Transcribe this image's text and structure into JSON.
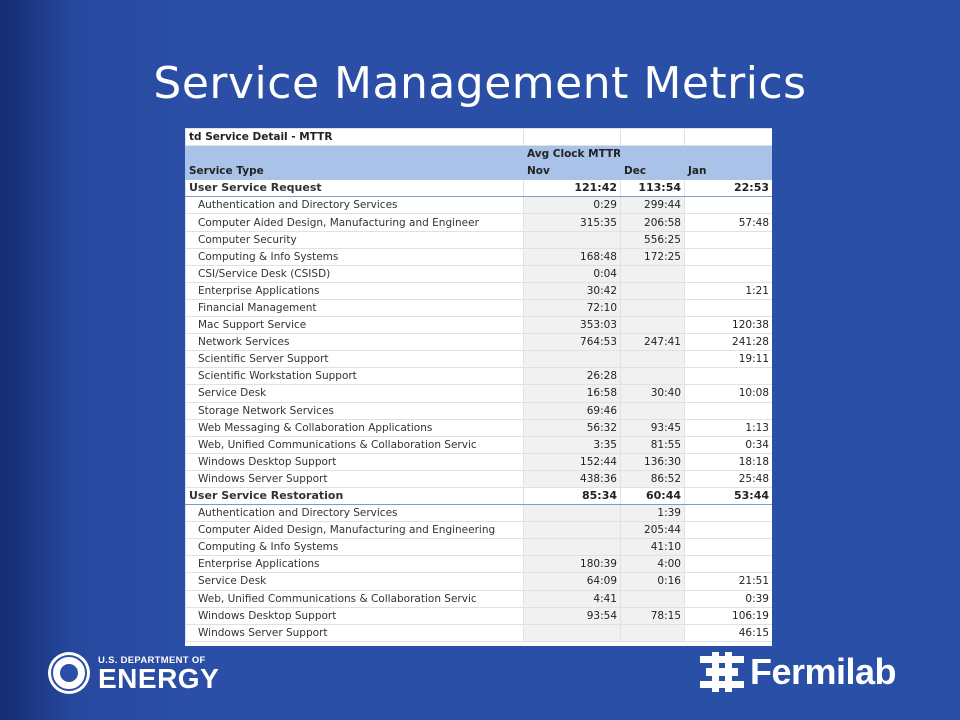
{
  "slide": {
    "title": "Service Management Metrics"
  },
  "table": {
    "top_title": "td Service Detail - MTTR",
    "header_metric": "Avg Clock MTTR",
    "col_service": "Service Type",
    "months": [
      "Nov",
      "Dec",
      "Jan"
    ],
    "groups": [
      {
        "name": "User Service Request",
        "totals": [
          "121:42",
          "113:54",
          "22:53"
        ],
        "rows": [
          {
            "name": "Authentication and Directory Services",
            "vals": [
              "0:29",
              "299:44",
              ""
            ]
          },
          {
            "name": "Computer Aided Design, Manufacturing and Engineer",
            "vals": [
              "315:35",
              "206:58",
              "57:48"
            ]
          },
          {
            "name": "Computer Security",
            "vals": [
              "",
              "556:25",
              ""
            ]
          },
          {
            "name": "Computing & Info Systems",
            "vals": [
              "168:48",
              "172:25",
              ""
            ]
          },
          {
            "name": "CSI/Service Desk (CSISD)",
            "vals": [
              "0:04",
              "",
              ""
            ]
          },
          {
            "name": "Enterprise Applications",
            "vals": [
              "30:42",
              "",
              "1:21"
            ]
          },
          {
            "name": "Financial Management",
            "vals": [
              "72:10",
              "",
              ""
            ]
          },
          {
            "name": "Mac Support Service",
            "vals": [
              "353:03",
              "",
              "120:38"
            ]
          },
          {
            "name": "Network Services",
            "vals": [
              "764:53",
              "247:41",
              "241:28"
            ]
          },
          {
            "name": "Scientific Server Support",
            "vals": [
              "",
              "",
              "19:11"
            ]
          },
          {
            "name": "Scientific Workstation Support",
            "vals": [
              "26:28",
              "",
              ""
            ]
          },
          {
            "name": "Service Desk",
            "vals": [
              "16:58",
              "30:40",
              "10:08"
            ]
          },
          {
            "name": "Storage Network Services",
            "vals": [
              "69:46",
              "",
              ""
            ]
          },
          {
            "name": "Web Messaging & Collaboration Applications",
            "vals": [
              "56:32",
              "93:45",
              "1:13"
            ]
          },
          {
            "name": "Web, Unified Communications & Collaboration Servic",
            "vals": [
              "3:35",
              "81:55",
              "0:34"
            ]
          },
          {
            "name": "Windows Desktop Support",
            "vals": [
              "152:44",
              "136:30",
              "18:18"
            ]
          },
          {
            "name": "Windows Server Support",
            "vals": [
              "438:36",
              "86:52",
              "25:48"
            ]
          }
        ]
      },
      {
        "name": "User Service Restoration",
        "totals": [
          "85:34",
          "60:44",
          "53:44"
        ],
        "rows": [
          {
            "name": "Authentication and Directory Services",
            "vals": [
              "",
              "1:39",
              ""
            ]
          },
          {
            "name": "Computer Aided Design, Manufacturing and Engineering",
            "vals": [
              "",
              "205:44",
              ""
            ]
          },
          {
            "name": "Computing & Info Systems",
            "vals": [
              "",
              "41:10",
              ""
            ]
          },
          {
            "name": "Enterprise Applications",
            "vals": [
              "180:39",
              "4:00",
              ""
            ]
          },
          {
            "name": "Service Desk",
            "vals": [
              "64:09",
              "0:16",
              "21:51"
            ]
          },
          {
            "name": "Web, Unified Communications & Collaboration Servic",
            "vals": [
              "4:41",
              "",
              "0:39"
            ]
          },
          {
            "name": "Windows Desktop Support",
            "vals": [
              "93:54",
              "78:15",
              "106:19"
            ]
          },
          {
            "name": "Windows Server Support",
            "vals": [
              "",
              "",
              "46:15"
            ]
          }
        ]
      }
    ]
  },
  "footer": {
    "doe_line1": "U.S. DEPARTMENT OF",
    "doe_line2": "ENERGY",
    "fermilab": "Fermilab"
  }
}
